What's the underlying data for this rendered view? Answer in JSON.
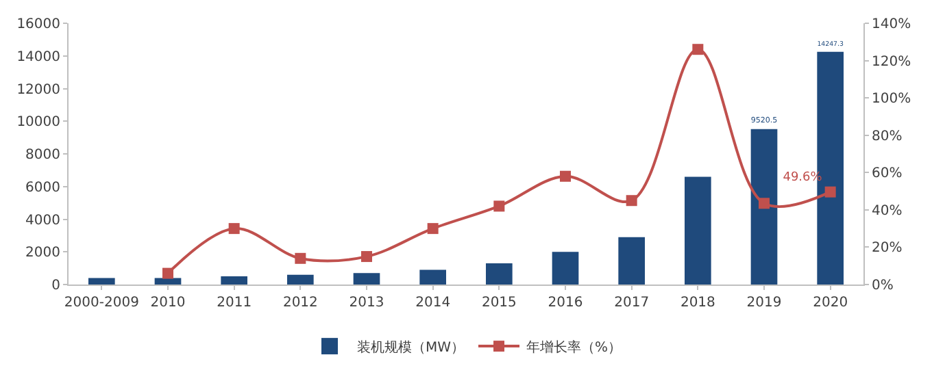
{
  "chart_data": {
    "type": "bar",
    "categories": [
      "2000-2009",
      "2010",
      "2011",
      "2012",
      "2013",
      "2014",
      "2015",
      "2016",
      "2017",
      "2018",
      "2019",
      "2020"
    ],
    "series": [
      {
        "name": "装机规模（MW）",
        "color": "#1f4a7c",
        "values": [
          400,
          400,
          500,
          600,
          700,
          900,
          1300,
          2000,
          2900,
          6600,
          9520.5,
          14247.3
        ],
        "value_labels": [
          null,
          null,
          null,
          null,
          null,
          null,
          null,
          null,
          null,
          null,
          "9520.5",
          "14247.3"
        ]
      },
      {
        "name": "年增长率（%）",
        "type": "line",
        "axis": "y2",
        "color": "#c0504d",
        "values": [
          null,
          6,
          30,
          14,
          15,
          30,
          42,
          58,
          45,
          126,
          43.5,
          49.6
        ],
        "value_labels": [
          null,
          null,
          null,
          null,
          null,
          null,
          null,
          null,
          null,
          null,
          null,
          "49.6%"
        ],
        "marker": "square"
      }
    ],
    "ylim": [
      0,
      16000
    ],
    "yticks": [
      0,
      2000,
      4000,
      6000,
      8000,
      10000,
      12000,
      14000,
      16000
    ],
    "y2lim": [
      0,
      140
    ],
    "y2ticks": [
      {
        "value": 0,
        "label": "0%"
      },
      {
        "value": 20,
        "label": "20%"
      },
      {
        "value": 40,
        "label": "40%"
      },
      {
        "value": 60,
        "label": "60%"
      },
      {
        "value": 80,
        "label": "80%"
      },
      {
        "value": 100,
        "label": "100%"
      },
      {
        "value": 120,
        "label": "120%"
      },
      {
        "value": 140,
        "label": "140%"
      }
    ],
    "grid": false,
    "legend": "bottom"
  }
}
